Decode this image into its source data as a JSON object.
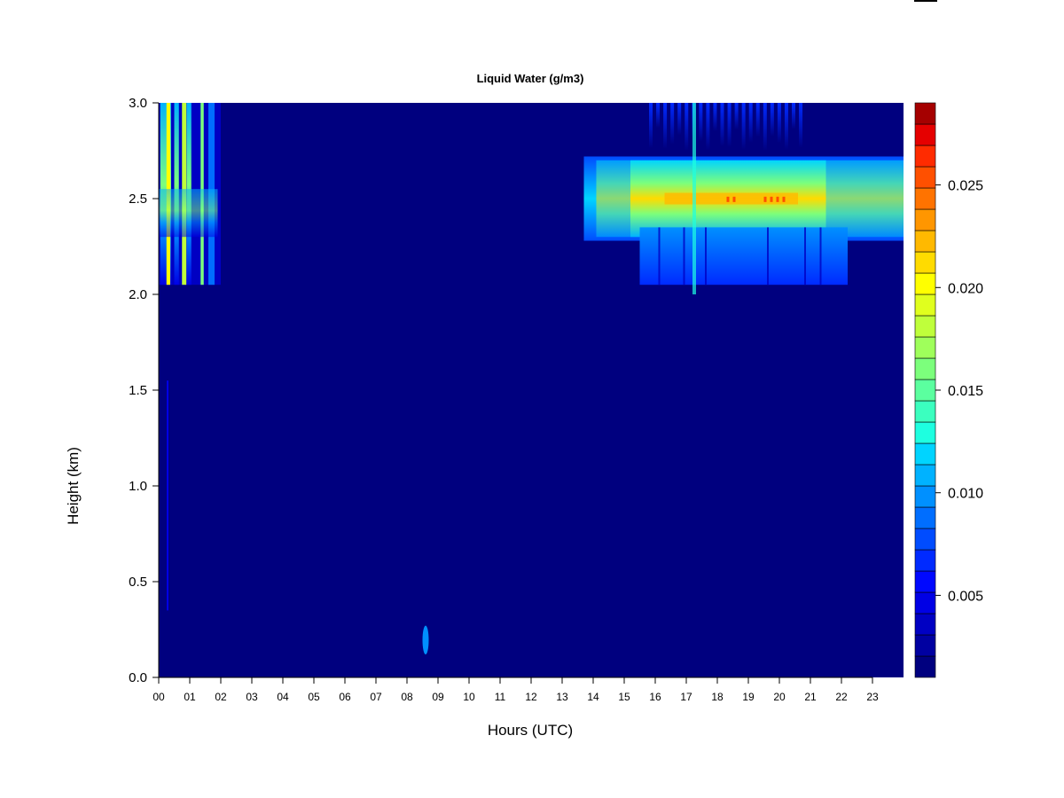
{
  "chart_data": {
    "type": "heatmap",
    "title": "Liquid Water (g/m3)",
    "xlabel": "Hours (UTC)",
    "ylabel": "Height (km)",
    "x_ticks": [
      "00",
      "01",
      "02",
      "03",
      "04",
      "05",
      "06",
      "07",
      "08",
      "09",
      "10",
      "11",
      "12",
      "13",
      "14",
      "15",
      "16",
      "17",
      "18",
      "19",
      "20",
      "21",
      "22",
      "23"
    ],
    "y_ticks": [
      "0.0",
      "0.5",
      "1.0",
      "1.5",
      "2.0",
      "2.5",
      "3.0"
    ],
    "xlim": [
      0,
      24
    ],
    "ylim": [
      0,
      3.0
    ],
    "colorbar": {
      "ticks": [
        "0.005",
        "0.010",
        "0.015",
        "0.020",
        "0.025"
      ],
      "range": [
        0.001,
        0.029
      ],
      "levels": 27,
      "colors": [
        "#00007F",
        "#0000A1",
        "#0000C3",
        "#0000E5",
        "#0008FF",
        "#002AFF",
        "#004CFF",
        "#006EFF",
        "#0090FF",
        "#00B2FF",
        "#00D4FF",
        "#1EFFE0",
        "#3BFFBF",
        "#5BFF9F",
        "#7CFF7C",
        "#9FFF5B",
        "#BFFF3B",
        "#E0FF1E",
        "#FFFF00",
        "#FFDB00",
        "#FFB900",
        "#FF9600",
        "#FF7300",
        "#FF5000",
        "#FF2B00",
        "#E50000",
        "#A50000"
      ]
    },
    "background_value": 0.001,
    "features": [
      {
        "name": "early cloud layer",
        "x_range": [
          0.0,
          2.0
        ],
        "y_range": [
          2.05,
          3.0
        ],
        "peak": 0.018
      },
      {
        "name": "main cloud layer",
        "x_range": [
          13.7,
          24.0
        ],
        "y_range": [
          2.3,
          2.7
        ],
        "peak": 0.024
      },
      {
        "name": "lower cloud extension",
        "x_range": [
          15.5,
          22.2
        ],
        "y_range": [
          2.05,
          2.35
        ],
        "peak": 0.009
      },
      {
        "name": "upper cloud streaks",
        "x_range": [
          15.8,
          20.7
        ],
        "y_range": [
          2.75,
          3.0
        ],
        "peak": 0.008
      },
      {
        "name": "surface blip",
        "x_range": [
          8.5,
          8.7
        ],
        "y_range": [
          0.12,
          0.27
        ],
        "peak": 0.008
      }
    ]
  }
}
